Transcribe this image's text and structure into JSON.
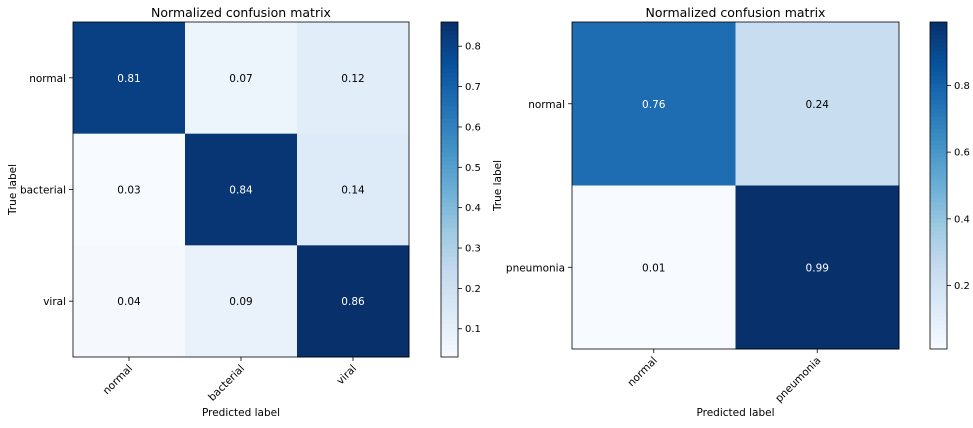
{
  "chart_data": [
    {
      "type": "heatmap",
      "title": "Normalized confusion matrix",
      "xlabel": "Predicted label",
      "ylabel": "True label",
      "x_categories": [
        "normal",
        "bacterial",
        "viral"
      ],
      "y_categories": [
        "normal",
        "bacterial",
        "viral"
      ],
      "values": [
        [
          0.81,
          0.07,
          0.12
        ],
        [
          0.03,
          0.84,
          0.14
        ],
        [
          0.04,
          0.09,
          0.86
        ]
      ],
      "cell_labels": [
        [
          "0.81",
          "0.07",
          "0.12"
        ],
        [
          "0.03",
          "0.84",
          "0.14"
        ],
        [
          "0.04",
          "0.09",
          "0.86"
        ]
      ],
      "colormap": "Blues",
      "colorbar": {
        "range": [
          0.03,
          0.86
        ],
        "ticks": [
          0.1,
          0.2,
          0.3,
          0.4,
          0.5,
          0.6,
          0.7,
          0.8
        ],
        "tick_labels": [
          "0.1",
          "0.2",
          "0.3",
          "0.4",
          "0.5",
          "0.6",
          "0.7",
          "0.8"
        ]
      }
    },
    {
      "type": "heatmap",
      "title": "Normalized confusion matrix",
      "xlabel": "Predicted label",
      "ylabel": "True label",
      "x_categories": [
        "normal",
        "pneumonia"
      ],
      "y_categories": [
        "normal",
        "pneumonia"
      ],
      "values": [
        [
          0.76,
          0.24
        ],
        [
          0.01,
          0.99
        ]
      ],
      "cell_labels": [
        [
          "0.76",
          "0.24"
        ],
        [
          "0.01",
          "0.99"
        ]
      ],
      "colormap": "Blues",
      "colorbar": {
        "range": [
          0.01,
          0.99
        ],
        "ticks": [
          0.2,
          0.4,
          0.6,
          0.8
        ],
        "tick_labels": [
          "0.2",
          "0.4",
          "0.6",
          "0.8"
        ]
      }
    }
  ]
}
